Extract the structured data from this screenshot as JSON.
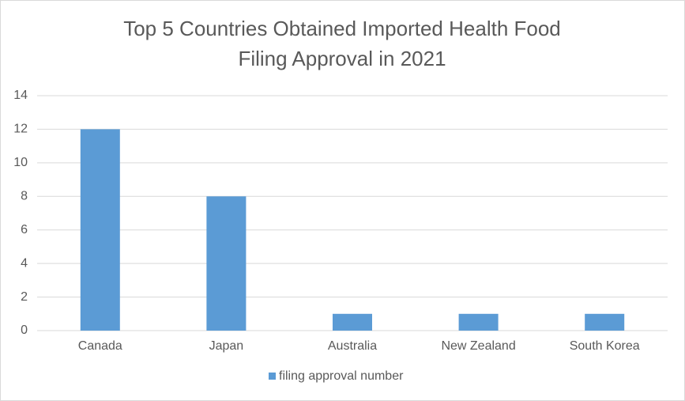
{
  "chart_data": {
    "type": "bar",
    "title": [
      "Top 5 Countries Obtained Imported Health Food",
      "Filing Approval in 2021"
    ],
    "categories": [
      "Canada",
      "Japan",
      "Australia",
      "New Zealand",
      "South Korea"
    ],
    "series": [
      {
        "name": "filing approval number",
        "color": "#5b9bd5",
        "values": [
          12,
          8,
          1,
          1,
          1
        ]
      }
    ],
    "ylim": [
      0,
      14
    ],
    "yticks": [
      0,
      2,
      4,
      6,
      8,
      10,
      12,
      14
    ],
    "grid": true,
    "legend": "bottom"
  }
}
